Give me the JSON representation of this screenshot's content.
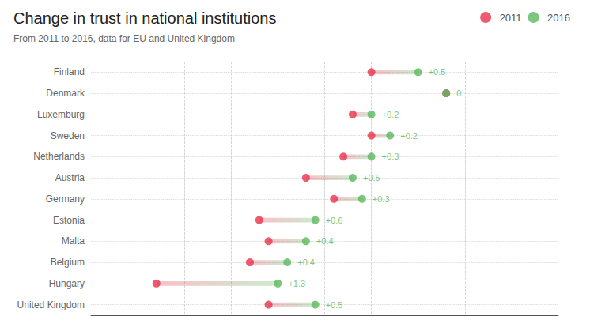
{
  "chart_data": {
    "type": "dumbbell",
    "title": "Change in trust in national institutions",
    "subtitle": "From 2011 to 2016, data for EU and United Kingdom",
    "categories": [
      "Finland",
      "Denmark",
      "Luxemburg",
      "Sweden",
      "Netherlands",
      "Austria",
      "Germany",
      "Estonia",
      "Malta",
      "Belgium",
      "Hungary",
      "United Kingdom"
    ],
    "series": [
      {
        "name": "2011",
        "color": "#e8334a",
        "values": [
          5.5,
          6.3,
          5.3,
          5.5,
          5.2,
          4.8,
          5.1,
          4.3,
          4.4,
          4.2,
          3.2,
          4.4
        ]
      },
      {
        "name": "2016",
        "color": "#5cb85c",
        "values": [
          6.0,
          6.3,
          5.5,
          5.7,
          5.5,
          5.3,
          5.4,
          4.9,
          4.8,
          4.6,
          4.5,
          4.9
        ]
      }
    ],
    "changes": [
      "+0.5",
      "0",
      "+0.2",
      "+0.2",
      "+0.3",
      "+0.5",
      "+0.3",
      "+0.6",
      "+0.4",
      "+0.4",
      "+1.3",
      "+0.5"
    ],
    "xlim": [
      2.5,
      7.5
    ],
    "xticks": [
      3.0,
      3.5,
      4.0,
      4.5,
      5.0,
      5.5,
      6.0,
      6.5,
      7.0
    ],
    "grid": true,
    "tick_labels": "y",
    "legend": "top right"
  }
}
